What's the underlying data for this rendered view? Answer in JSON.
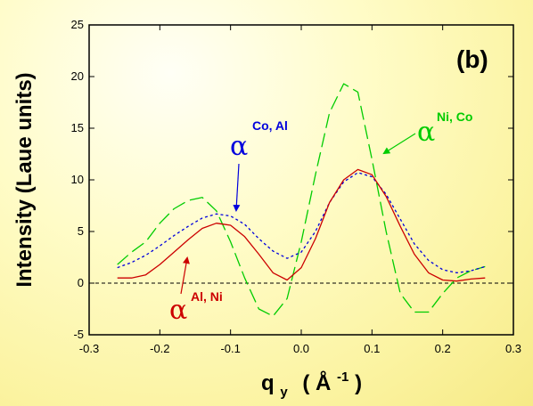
{
  "chart_data": {
    "type": "line",
    "panel_label": "(b)",
    "xlabel": {
      "main": "q",
      "sub": "y",
      "unit_open": "(",
      "unit": "Å",
      "sup": "-1",
      "unit_close": ")"
    },
    "ylabel": "Intensity  (Laue units)",
    "xlim": [
      -0.3,
      0.3
    ],
    "ylim": [
      -5,
      25
    ],
    "xticks": [
      "-0.3",
      "-0.2",
      "-0.1",
      "0.0",
      "0.1",
      "0.2",
      "0.3"
    ],
    "yticks": [
      "-5",
      "0",
      "5",
      "10",
      "15",
      "20",
      "25"
    ],
    "grid": false,
    "reference_line": {
      "y": 0,
      "style": "dashed",
      "color": "#000000"
    },
    "series": [
      {
        "color": "#00cc00",
        "style": "long-dash",
        "label_greek": "α",
        "label_sub": "Ni, Co",
        "x": [
          -0.26,
          -0.24,
          -0.22,
          -0.2,
          -0.18,
          -0.16,
          -0.14,
          -0.12,
          -0.1,
          -0.08,
          -0.06,
          -0.04,
          -0.02,
          0.0,
          0.02,
          0.04,
          0.06,
          0.08,
          0.1,
          0.12,
          0.14,
          0.16,
          0.18,
          0.2,
          0.22,
          0.24,
          0.26
        ],
        "y": [
          1.8,
          3.0,
          4.0,
          5.8,
          7.2,
          8.0,
          8.3,
          7.0,
          4.0,
          0.5,
          -2.5,
          -3.2,
          -1.5,
          4.0,
          10.5,
          16.5,
          19.3,
          18.5,
          12.0,
          5.0,
          -1.0,
          -2.8,
          -2.8,
          -1.0,
          0.5,
          1.2,
          1.6
        ]
      },
      {
        "color": "#0000dd",
        "style": "dashed",
        "label_greek": "α",
        "label_sub": "Co, Al",
        "x": [
          -0.26,
          -0.24,
          -0.22,
          -0.2,
          -0.18,
          -0.16,
          -0.14,
          -0.12,
          -0.1,
          -0.08,
          -0.06,
          -0.04,
          -0.02,
          0.0,
          0.02,
          0.04,
          0.06,
          0.08,
          0.1,
          0.12,
          0.14,
          0.16,
          0.18,
          0.2,
          0.22,
          0.24,
          0.26
        ],
        "y": [
          1.5,
          2.0,
          2.7,
          3.6,
          4.6,
          5.5,
          6.3,
          6.7,
          6.5,
          5.7,
          4.3,
          3.1,
          2.4,
          3.0,
          5.0,
          7.8,
          9.8,
          10.7,
          10.3,
          8.6,
          6.2,
          3.8,
          2.2,
          1.3,
          1.0,
          1.2,
          1.6
        ]
      },
      {
        "color": "#cc0000",
        "style": "solid",
        "label_greek": "α",
        "label_sub": "Al, Ni",
        "x": [
          -0.26,
          -0.24,
          -0.22,
          -0.2,
          -0.18,
          -0.16,
          -0.14,
          -0.12,
          -0.1,
          -0.08,
          -0.06,
          -0.04,
          -0.02,
          0.0,
          0.02,
          0.04,
          0.06,
          0.08,
          0.1,
          0.12,
          0.14,
          0.16,
          0.18,
          0.2,
          0.22,
          0.24,
          0.26
        ],
        "y": [
          0.5,
          0.5,
          0.8,
          1.8,
          3.0,
          4.2,
          5.3,
          5.8,
          5.6,
          4.5,
          2.8,
          1.0,
          0.3,
          1.5,
          4.3,
          7.8,
          10.0,
          11.0,
          10.5,
          8.4,
          5.5,
          2.8,
          1.0,
          0.3,
          0.2,
          0.4,
          0.5
        ]
      }
    ]
  }
}
